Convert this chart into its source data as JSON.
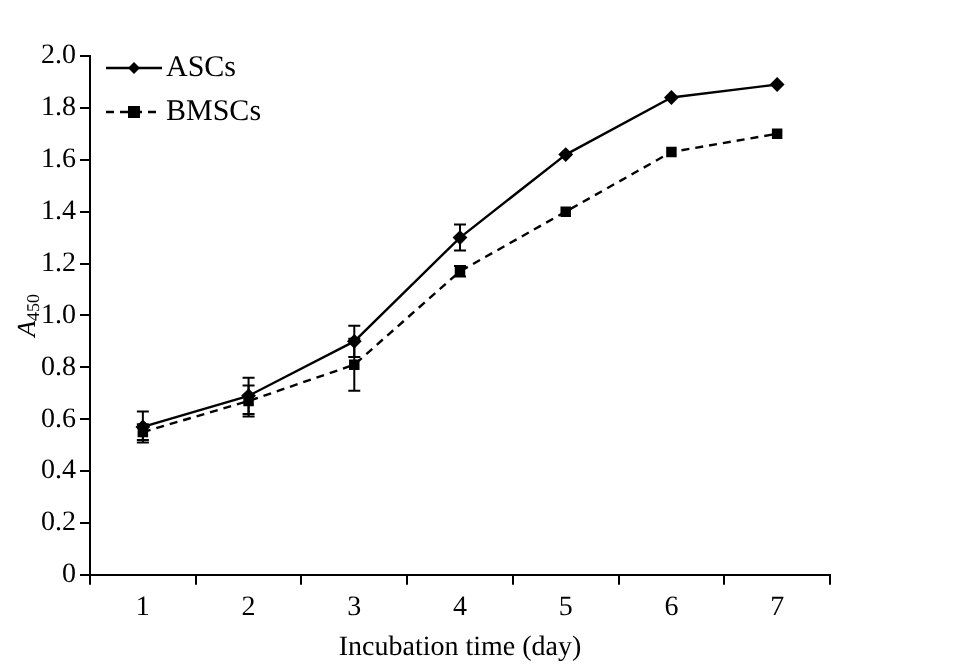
{
  "chart_data": {
    "type": "line",
    "xlabel": "Incubation time (day)",
    "ylabel": "A$_{450}$",
    "categories": [
      "1",
      "2",
      "3",
      "4",
      "5",
      "6",
      "7"
    ],
    "ylim": [
      0,
      2.0
    ],
    "yticks": [
      0,
      {
        "value": 0.2,
        "label": "0.2"
      },
      {
        "value": 0.4,
        "label": "0.4"
      },
      {
        "value": 0.6,
        "label": "0.6"
      },
      {
        "value": 0.8,
        "label": "0.8"
      },
      {
        "value": 1.0,
        "label": "1.0"
      },
      {
        "value": 1.2,
        "label": "1.2"
      },
      {
        "value": 1.4,
        "label": "1.4"
      },
      {
        "value": 1.6,
        "label": "1.6"
      },
      {
        "value": 1.8,
        "label": "1.8"
      },
      {
        "value": 2.0,
        "label": "2.0"
      }
    ],
    "grid": false,
    "legend": "top left",
    "series": [
      {
        "name": "ASCs",
        "color": "#000000",
        "marker": "diamond",
        "line_style": "solid",
        "values": [
          0.57,
          0.69,
          0.9,
          1.3,
          1.62,
          1.84,
          1.89
        ],
        "errors": [
          0.06,
          0.07,
          0.06,
          0.05,
          null,
          null,
          null
        ]
      },
      {
        "name": "BMSCs",
        "color": "#000000",
        "marker": "square",
        "line_style": "dashed",
        "values": [
          0.55,
          0.67,
          0.81,
          1.17,
          1.4,
          1.63,
          1.7
        ],
        "errors": [
          0.03,
          0.06,
          0.1,
          0.02,
          null,
          null,
          null
        ]
      }
    ]
  }
}
